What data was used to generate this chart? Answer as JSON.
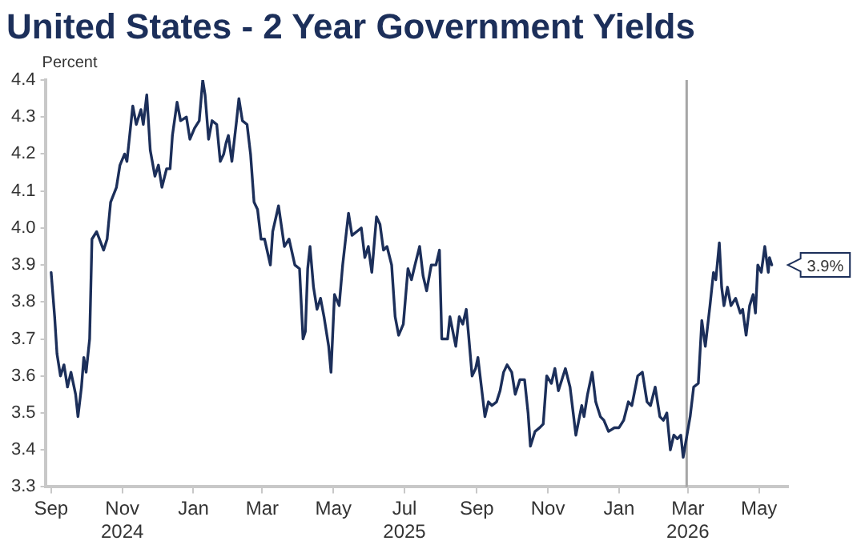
{
  "chart_data": {
    "type": "line",
    "title": "United States - 2 Year Government Yields",
    "ylabel": "Percent",
    "x": [
      "2024-09-01",
      "2024-09-04",
      "2024-09-06",
      "2024-09-09",
      "2024-09-12",
      "2024-09-15",
      "2024-09-18",
      "2024-09-22",
      "2024-09-24",
      "2024-09-27",
      "2024-09-29",
      "2024-10-01",
      "2024-10-04",
      "2024-10-06",
      "2024-10-10",
      "2024-10-16",
      "2024-10-19",
      "2024-10-22",
      "2024-10-27",
      "2024-10-30",
      "2024-11-03",
      "2024-11-05",
      "2024-11-08",
      "2024-11-10",
      "2024-11-13",
      "2024-11-17",
      "2024-11-19",
      "2024-11-22",
      "2024-11-25",
      "2024-11-29",
      "2024-12-02",
      "2024-12-05",
      "2024-12-09",
      "2024-12-12",
      "2024-12-14",
      "2024-12-18",
      "2024-12-21",
      "2024-12-26",
      "2024-12-29",
      "2025-01-02",
      "2025-01-06",
      "2025-01-09",
      "2025-01-11",
      "2025-01-14",
      "2025-01-17",
      "2025-01-21",
      "2025-01-24",
      "2025-01-27",
      "2025-01-29",
      "2025-01-31",
      "2025-02-03",
      "2025-02-07",
      "2025-02-09",
      "2025-02-12",
      "2025-02-16",
      "2025-02-19",
      "2025-02-22",
      "2025-02-25",
      "2025-02-28",
      "2025-03-03",
      "2025-03-08",
      "2025-03-10",
      "2025-03-15",
      "2025-03-20",
      "2025-03-24",
      "2025-03-29",
      "2025-04-02",
      "2025-04-05",
      "2025-04-07",
      "2025-04-09",
      "2025-04-11",
      "2025-04-14",
      "2025-04-17",
      "2025-04-20",
      "2025-04-23",
      "2025-04-27",
      "2025-04-29",
      "2025-05-02",
      "2025-05-06",
      "2025-05-09",
      "2025-05-14",
      "2025-05-17",
      "2025-05-21",
      "2025-05-25",
      "2025-05-28",
      "2025-05-31",
      "2025-06-03",
      "2025-06-07",
      "2025-06-10",
      "2025-06-13",
      "2025-06-16",
      "2025-06-20",
      "2025-06-23",
      "2025-06-26",
      "2025-06-30",
      "2025-07-04",
      "2025-07-07",
      "2025-07-10",
      "2025-07-14",
      "2025-07-17",
      "2025-07-20",
      "2025-07-24",
      "2025-07-28",
      "2025-07-31",
      "2025-08-02",
      "2025-08-07",
      "2025-08-09",
      "2025-08-14",
      "2025-08-17",
      "2025-08-20",
      "2025-08-23",
      "2025-08-25",
      "2025-08-28",
      "2025-08-31",
      "2025-09-02",
      "2025-09-05",
      "2025-09-08",
      "2025-09-11",
      "2025-09-14",
      "2025-09-18",
      "2025-09-21",
      "2025-09-24",
      "2025-09-27",
      "2025-10-01",
      "2025-10-04",
      "2025-10-08",
      "2025-10-12",
      "2025-10-15",
      "2025-10-17",
      "2025-10-21",
      "2025-10-25",
      "2025-10-28",
      "2025-10-31",
      "2025-11-04",
      "2025-11-07",
      "2025-11-10",
      "2025-11-16",
      "2025-11-20",
      "2025-11-25",
      "2025-11-30",
      "2025-12-02",
      "2025-12-05",
      "2025-12-09",
      "2025-12-12",
      "2025-12-16",
      "2025-12-19",
      "2025-12-23",
      "2025-12-28",
      "2026-01-01",
      "2026-01-05",
      "2026-01-09",
      "2026-01-12",
      "2026-01-17",
      "2026-01-21",
      "2026-01-25",
      "2026-01-28",
      "2026-02-01",
      "2026-02-05",
      "2026-02-08",
      "2026-02-11",
      "2026-02-14",
      "2026-02-17",
      "2026-02-20",
      "2026-02-23",
      "2026-02-25",
      "2026-03-03",
      "2026-03-06",
      "2026-03-10",
      "2026-03-13",
      "2026-03-16",
      "2026-03-20",
      "2026-03-23",
      "2026-03-25",
      "2026-03-28",
      "2026-03-30",
      "2026-04-01",
      "2026-04-04",
      "2026-04-07",
      "2026-04-11",
      "2026-04-15",
      "2026-04-17",
      "2026-04-20",
      "2026-04-23",
      "2026-04-26",
      "2026-04-28",
      "2026-04-30",
      "2026-05-03",
      "2026-05-06",
      "2026-05-09",
      "2026-05-10",
      "2026-05-12"
    ],
    "series": [
      {
        "color": "#1c2f5a",
        "values": [
          3.88,
          3.76,
          3.66,
          3.6,
          3.63,
          3.57,
          3.61,
          3.55,
          3.49,
          3.57,
          3.65,
          3.61,
          3.7,
          3.97,
          3.99,
          3.94,
          3.97,
          4.07,
          4.11,
          4.17,
          4.2,
          4.18,
          4.27,
          4.33,
          4.28,
          4.32,
          4.28,
          4.36,
          4.21,
          4.14,
          4.17,
          4.11,
          4.16,
          4.16,
          4.25,
          4.34,
          4.29,
          4.3,
          4.24,
          4.27,
          4.29,
          4.4,
          4.36,
          4.24,
          4.29,
          4.28,
          4.18,
          4.2,
          4.23,
          4.25,
          4.18,
          4.29,
          4.35,
          4.29,
          4.28,
          4.2,
          4.07,
          4.05,
          3.97,
          3.97,
          3.9,
          3.99,
          4.06,
          3.95,
          3.97,
          3.9,
          3.89,
          3.7,
          3.72,
          3.89,
          3.95,
          3.84,
          3.78,
          3.81,
          3.76,
          3.68,
          3.61,
          3.82,
          3.79,
          3.9,
          4.04,
          3.98,
          3.99,
          4.0,
          3.92,
          3.95,
          3.88,
          4.03,
          4.01,
          3.94,
          3.95,
          3.9,
          3.76,
          3.71,
          3.74,
          3.89,
          3.86,
          3.9,
          3.95,
          3.87,
          3.83,
          3.9,
          3.9,
          3.94,
          3.7,
          3.7,
          3.76,
          3.68,
          3.76,
          3.74,
          3.78,
          3.71,
          3.6,
          3.62,
          3.65,
          3.57,
          3.49,
          3.53,
          3.52,
          3.53,
          3.56,
          3.61,
          3.63,
          3.61,
          3.55,
          3.59,
          3.59,
          3.5,
          3.41,
          3.45,
          3.46,
          3.47,
          3.6,
          3.58,
          3.62,
          3.56,
          3.62,
          3.57,
          3.44,
          3.52,
          3.49,
          3.55,
          3.61,
          3.53,
          3.49,
          3.48,
          3.45,
          3.46,
          3.46,
          3.48,
          3.53,
          3.52,
          3.6,
          3.61,
          3.53,
          3.52,
          3.57,
          3.49,
          3.48,
          3.5,
          3.4,
          3.44,
          3.43,
          3.44,
          3.38,
          3.49,
          3.57,
          3.58,
          3.75,
          3.68,
          3.79,
          3.88,
          3.86,
          3.96,
          3.84,
          3.79,
          3.84,
          3.79,
          3.81,
          3.77,
          3.78,
          3.71,
          3.79,
          3.82,
          3.77,
          3.9,
          3.88,
          3.95,
          3.88,
          3.92,
          3.9
        ]
      }
    ],
    "xlim": [
      "2024-08-27",
      "2026-05-26"
    ],
    "xticks": [
      {
        "value": "2024-09-01",
        "label": "Sep"
      },
      {
        "value": "2024-11-01",
        "label": "Nov 2024"
      },
      {
        "value": "2025-01-01",
        "label": "Jan"
      },
      {
        "value": "2025-03-01",
        "label": "Mar"
      },
      {
        "value": "2025-05-01",
        "label": "May"
      },
      {
        "value": "2025-07-01",
        "label": "Jul 2025"
      },
      {
        "value": "2025-09-01",
        "label": "Sep"
      },
      {
        "value": "2025-11-01",
        "label": "Nov"
      },
      {
        "value": "2026-01-01",
        "label": "Jan"
      },
      {
        "value": "2026-03-01",
        "label": "Mar 2026"
      },
      {
        "value": "2026-05-01",
        "label": "May"
      }
    ],
    "ylim": [
      3.3,
      4.4
    ],
    "yticks": [
      3.3,
      3.4,
      3.5,
      3.6,
      3.7,
      3.8,
      3.9,
      {
        "value": 4,
        "label": "4.0"
      },
      4.1,
      4.2,
      4.3,
      4.4
    ],
    "ref_lines": [
      {
        "axis": "x",
        "value": "2026-02-28",
        "color": "#a6a6a6"
      }
    ],
    "annotations": [
      {
        "text": "3.9%",
        "x": "2026-05-12",
        "y": 3.9
      }
    ],
    "grid": false,
    "legend": false,
    "marker": "none",
    "line_style": "solid"
  }
}
